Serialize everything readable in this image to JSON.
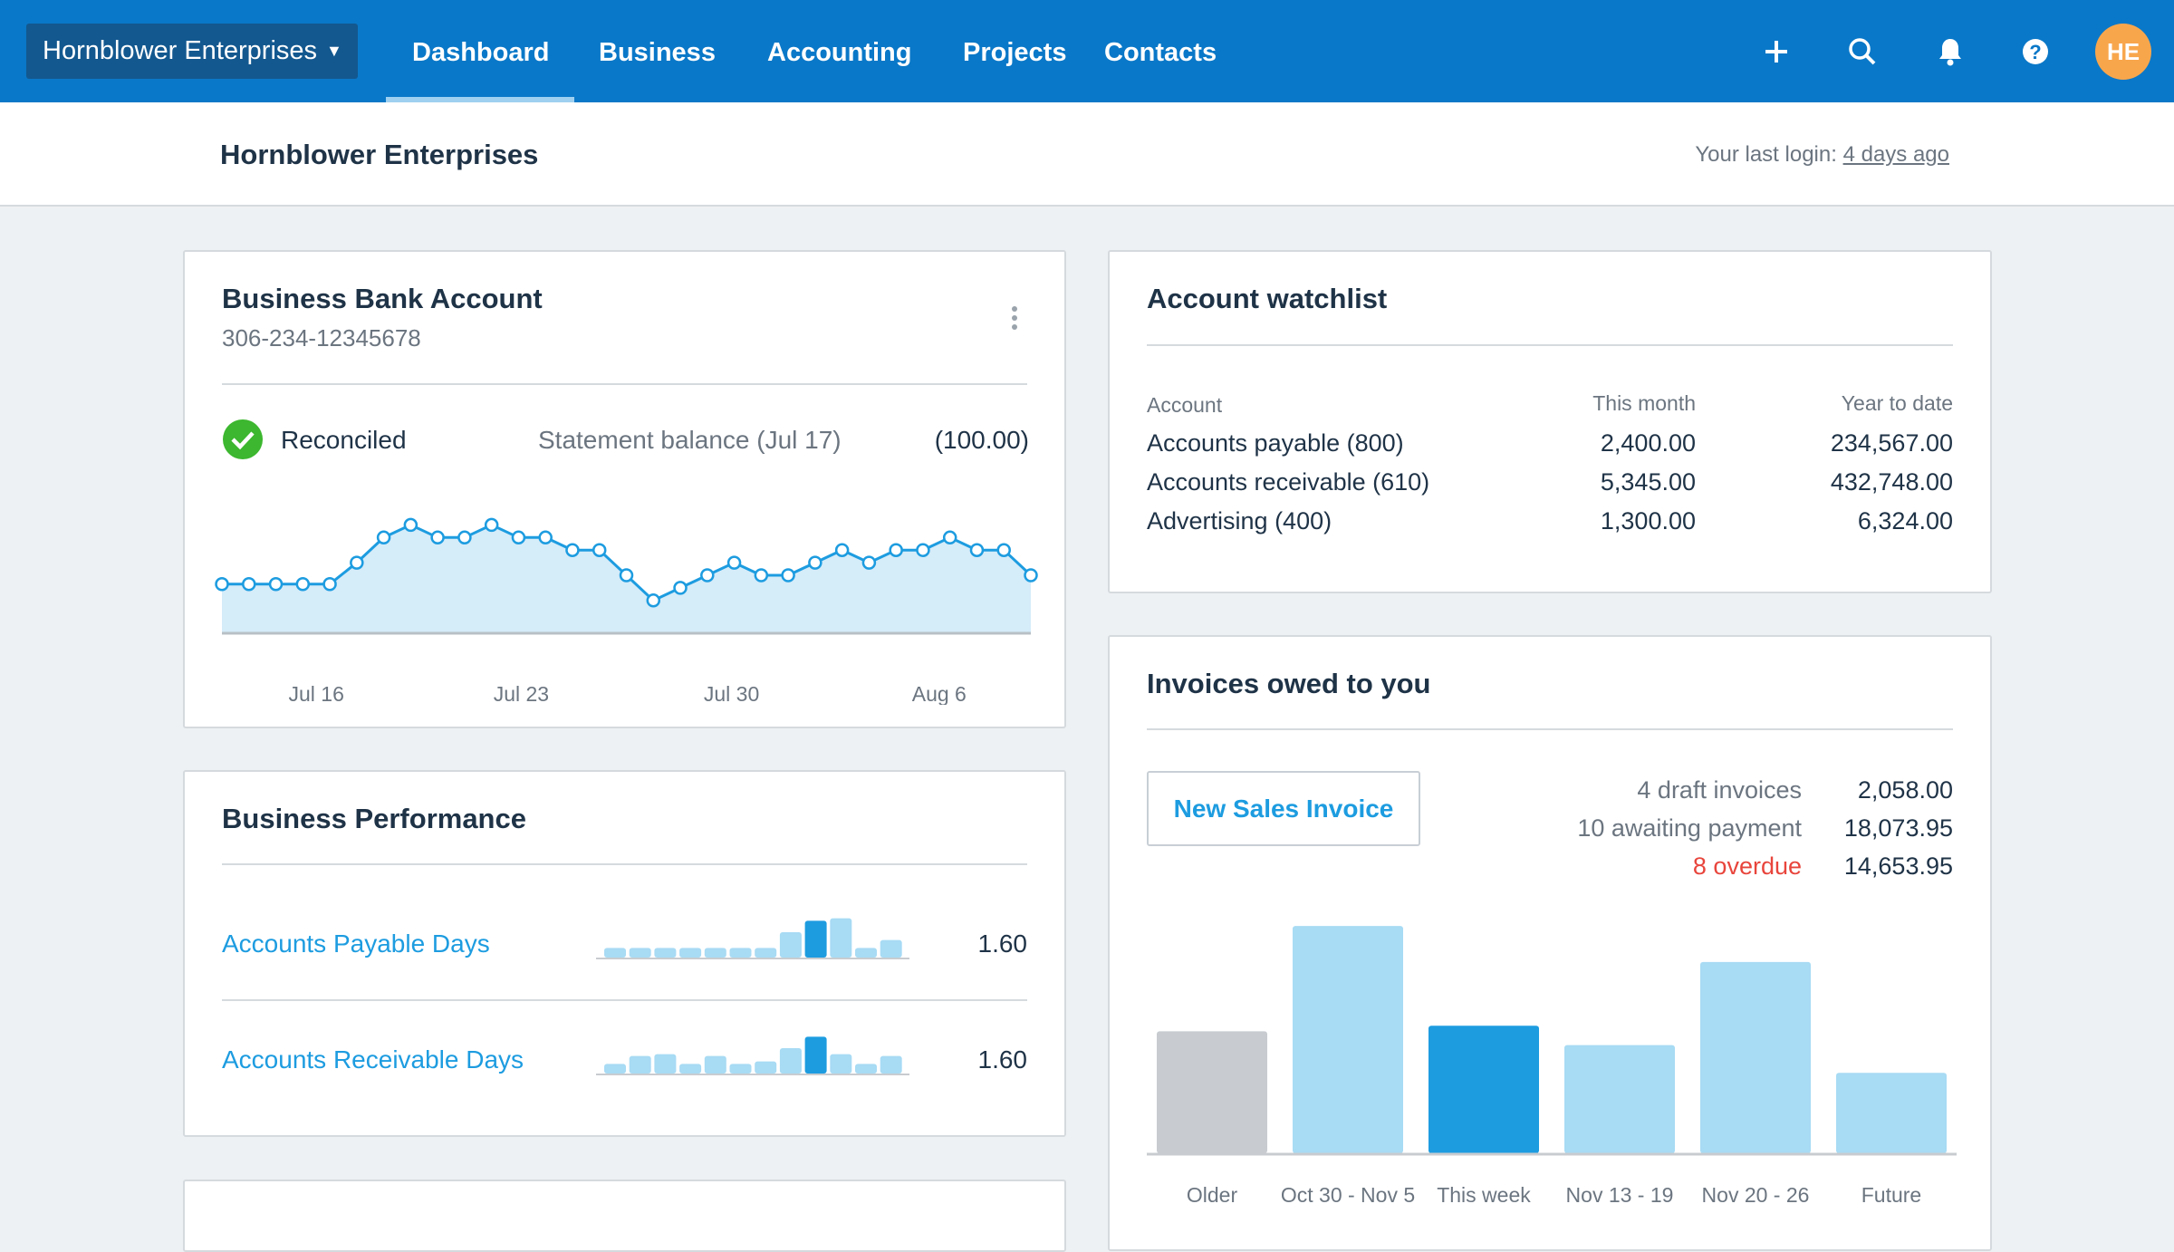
{
  "topbar": {
    "org_name": "Hornblower Enterprises",
    "nav": [
      "Dashboard",
      "Business",
      "Accounting",
      "Projects",
      "Contacts"
    ],
    "active_nav": "Dashboard",
    "icons": [
      "plus-icon",
      "search-icon",
      "bell-icon",
      "help-icon"
    ],
    "avatar_initials": "HE",
    "brand_color": "#0a78c8",
    "avatar_color": "#f8a64c"
  },
  "subheader": {
    "title": "Hornblower Enterprises",
    "last_login_label": "Your last login:",
    "last_login_value": "4 days ago"
  },
  "bank": {
    "title": "Business Bank Account",
    "account_number": "306-234-12345678",
    "status": "Reconciled",
    "statement_label": "Statement balance (Jul 17)",
    "statement_value": "(100.00)",
    "chart_data": {
      "type": "area",
      "values": [
        3.4,
        3.4,
        3.4,
        3.4,
        3.4,
        5.1,
        7.1,
        8.1,
        7.1,
        7.1,
        8.1,
        7.1,
        7.1,
        6.1,
        6.1,
        4.1,
        2.1,
        3.1,
        4.1,
        5.1,
        4.1,
        4.1,
        5.1,
        6.1,
        5.1,
        6.1,
        6.1,
        7.1,
        6.1,
        6.1,
        4.1
      ],
      "x_tick_labels": [
        "Jul 16",
        "Jul 23",
        "Jul 30",
        "Aug 6"
      ],
      "color": "#1d9ce0"
    }
  },
  "watchlist": {
    "title": "Account watchlist",
    "columns": [
      "Account",
      "This month",
      "Year to date"
    ],
    "rows": [
      {
        "account": "Accounts payable (800)",
        "month": "2,400.00",
        "ytd": "234,567.00"
      },
      {
        "account": "Accounts receivable (610)",
        "month": "5,345.00",
        "ytd": "432,748.00"
      },
      {
        "account": "Advertising (400)",
        "month": "1,300.00",
        "ytd": "6,324.00"
      }
    ]
  },
  "performance": {
    "title": "Business Performance",
    "rows": [
      {
        "label": "Accounts Payable Days",
        "value": "1.60",
        "bars": [
          32,
          32,
          32,
          32,
          32,
          32,
          32,
          84,
          122,
          130,
          32,
          58
        ],
        "highlight": 8
      },
      {
        "label": "Accounts Receivable Days",
        "value": "1.60",
        "bars": [
          32,
          58,
          64,
          32,
          58,
          32,
          40,
          84,
          122,
          64,
          32,
          58
        ],
        "highlight": 8
      }
    ]
  },
  "invoices": {
    "title": "Invoices owed to you",
    "new_button": "New Sales Invoice",
    "summary": [
      {
        "label": "4 draft invoices",
        "value": "2,058.00",
        "status": "normal"
      },
      {
        "label": "10 awaiting payment",
        "value": "18,073.95",
        "status": "normal"
      },
      {
        "label": "8 overdue",
        "value": "14,653.95",
        "status": "overdue"
      }
    ],
    "overdue_color": "#e8453c",
    "chart_data": {
      "type": "bar",
      "categories": [
        "Older",
        "Oct 30 - Nov 5",
        "This week",
        "Nov 13 - 19",
        "Nov 20 - 26",
        "Future"
      ],
      "values": [
        88,
        164,
        92,
        78,
        138,
        58
      ],
      "colors": [
        "#c8ccd0",
        "#a8dbf4",
        "#1d9ce0",
        "#a8dbf4",
        "#a8dbf4",
        "#a8dbf4"
      ]
    }
  }
}
